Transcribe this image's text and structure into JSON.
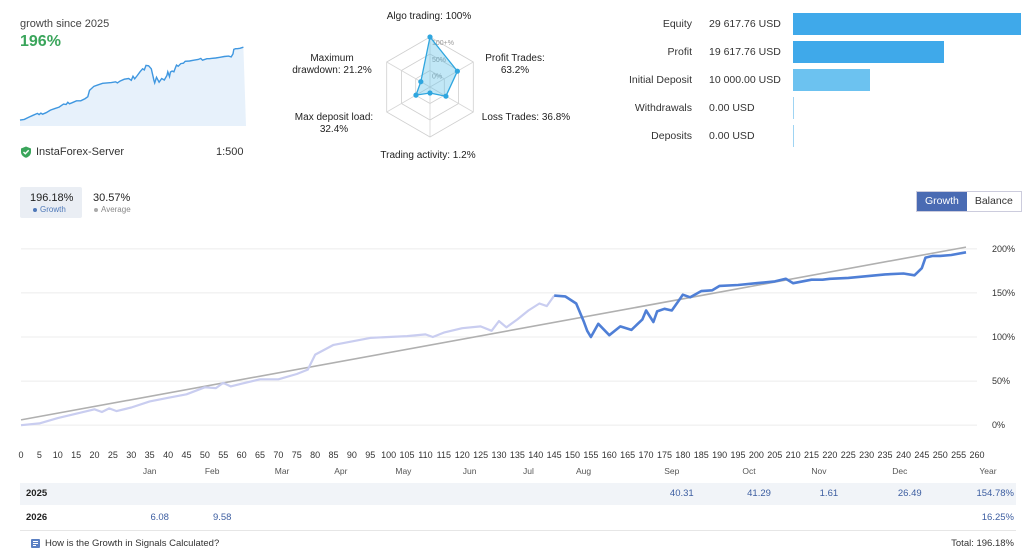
{
  "summary_card": {
    "growth_label": "growth since 2025",
    "growth_value": "196%",
    "server_name": "InstaForex-Server",
    "leverage": "1:500"
  },
  "radar": {
    "labels": {
      "algo": "Algo trading: 100%",
      "profit": "Profit Trades:\n63.2%",
      "loss": "Loss Trades: 36.8%",
      "activity": "Trading activity: 1.2%",
      "deposit_load": "Max deposit load:\n32.4%",
      "drawdown": "Maximum\ndrawdown: 21.2%"
    },
    "ring_labels": [
      "100+%",
      "50%",
      "0%"
    ],
    "values": {
      "algo": 100,
      "profit": 63.2,
      "loss": 36.8,
      "activity": 1.2,
      "deposit_load": 32.4,
      "drawdown": 21.2
    }
  },
  "account": {
    "rows": [
      {
        "label": "Equity",
        "value": "29 617.76 USD",
        "amount": 29617.76,
        "color": "#3fa9ea"
      },
      {
        "label": "Profit",
        "value": "19 617.76 USD",
        "amount": 19617.76,
        "color": "#3fa9ea"
      },
      {
        "label": "Initial Deposit",
        "value": "10 000.00 USD",
        "amount": 10000.0,
        "color": "#6cc2f0"
      },
      {
        "label": "Withdrawals",
        "value": "0.00 USD",
        "amount": 0,
        "color": "#6cc2f0"
      },
      {
        "label": "Deposits",
        "value": "0.00 USD",
        "amount": 0,
        "color": "#6cc2f0"
      }
    ],
    "max_amount": 29617.76
  },
  "legend": {
    "growth_value": "196.18%",
    "growth_label": "Growth",
    "average_value": "30.57%",
    "average_label": "Average"
  },
  "toggle": {
    "growth": "Growth",
    "balance": "Balance"
  },
  "chart_data": {
    "type": "line",
    "title": "",
    "x_ticks": [
      0,
      5,
      10,
      15,
      20,
      25,
      30,
      35,
      40,
      45,
      50,
      55,
      60,
      65,
      70,
      75,
      80,
      85,
      90,
      95,
      100,
      105,
      110,
      115,
      120,
      125,
      130,
      135,
      140,
      145,
      150,
      155,
      160,
      165,
      170,
      175,
      180,
      185,
      190,
      195,
      200,
      205,
      210,
      215,
      220,
      225,
      230,
      235,
      240,
      245,
      250,
      255,
      260
    ],
    "xlim": [
      0,
      260
    ],
    "ylim": [
      -10,
      210
    ],
    "y_ticks": [
      0,
      50,
      100,
      150,
      200
    ],
    "y_tick_labels": [
      "0%",
      "50%",
      "100%",
      "150%",
      "200%"
    ],
    "months": [
      {
        "label": "Jan",
        "x": 35
      },
      {
        "label": "Feb",
        "x": 52
      },
      {
        "label": "Mar",
        "x": 71
      },
      {
        "label": "Apr",
        "x": 87
      },
      {
        "label": "May",
        "x": 104
      },
      {
        "label": "Jun",
        "x": 122
      },
      {
        "label": "Jul",
        "x": 138
      },
      {
        "label": "Aug",
        "x": 153
      },
      {
        "label": "Sep",
        "x": 177
      },
      {
        "label": "Oct",
        "x": 198
      },
      {
        "label": "Nov",
        "x": 217
      },
      {
        "label": "Dec",
        "x": 239
      },
      {
        "label": "Year",
        "x": 263
      }
    ],
    "series": [
      {
        "name": "Growth (history)",
        "color": "#c9cdf0",
        "x": [
          0,
          5,
          10,
          15,
          20,
          22,
          24,
          26,
          30,
          35,
          40,
          45,
          50,
          53,
          55,
          57,
          60,
          65,
          70,
          75,
          78,
          80,
          85,
          90,
          95,
          100,
          105,
          110,
          112,
          115,
          120,
          125,
          128,
          130,
          132,
          135,
          138,
          141,
          143,
          145
        ],
        "y": [
          0,
          2,
          8,
          13,
          18,
          15,
          19,
          16,
          20,
          27,
          31,
          35,
          43,
          42,
          48,
          44,
          47,
          52,
          52,
          58,
          63,
          80,
          91,
          95,
          99,
          100,
          101,
          103,
          100,
          105,
          110,
          112,
          107,
          118,
          111,
          120,
          130,
          138,
          135,
          147
        ]
      },
      {
        "name": "Growth",
        "color": "#4f7fd6",
        "x": [
          145,
          148,
          151,
          153,
          154,
          155,
          157,
          160,
          163,
          166,
          169,
          170,
          172,
          173,
          175,
          177,
          179,
          180,
          182,
          185,
          188,
          190,
          195,
          200,
          205,
          208,
          210,
          215,
          218,
          220,
          225,
          230,
          235,
          240,
          243,
          245,
          246,
          248,
          250,
          253,
          257
        ],
        "y": [
          147,
          146,
          138,
          118,
          107,
          100,
          115,
          102,
          112,
          108,
          120,
          130,
          117,
          129,
          132,
          130,
          142,
          148,
          145,
          152,
          153,
          158,
          159,
          161,
          163,
          166,
          161,
          165,
          165,
          166,
          167,
          169,
          171,
          172,
          170,
          178,
          190,
          192,
          192,
          193,
          196
        ]
      },
      {
        "name": "Trend",
        "color": "#b0b0b0",
        "x": [
          0,
          257
        ],
        "y": [
          6,
          202
        ]
      }
    ]
  },
  "yearly_table": {
    "rows": [
      {
        "year": "2025",
        "cells": [
          {
            "month_x": 177,
            "value": "40.31"
          },
          {
            "month_x": 198,
            "value": "41.29"
          },
          {
            "month_x": 217,
            "value": "1.61"
          },
          {
            "month_x": 239,
            "value": "26.49"
          }
        ],
        "total": "154.78%"
      },
      {
        "year": "2026",
        "cells": [
          {
            "month_x": 35,
            "value": "6.08"
          },
          {
            "month_x": 52,
            "value": "9.58"
          }
        ],
        "total": "16.25%"
      }
    ]
  },
  "footer": {
    "help_link": "How is the Growth in Signals Calculated?",
    "total": "Total: 196.18%"
  }
}
